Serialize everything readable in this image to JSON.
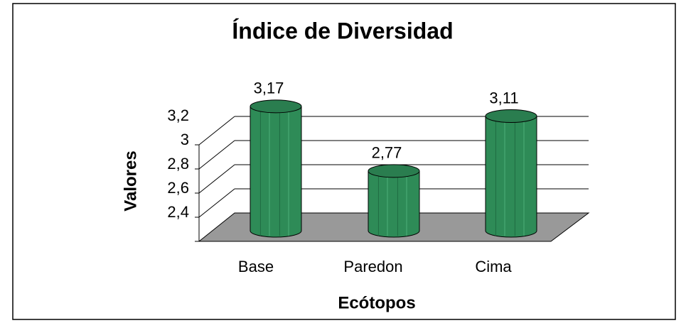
{
  "chart_data": {
    "type": "bar",
    "title": "Índice de Diversidad",
    "x_label": "Ecótopos",
    "y_label": "Valores",
    "categories": [
      "Base",
      "Paredon",
      "Cima"
    ],
    "values": [
      3.17,
      2.77,
      3.11
    ],
    "value_labels": [
      "3,17",
      "2,77",
      "3,11"
    ],
    "color": "#2e8b57",
    "ylim": [
      2.4,
      3.2
    ],
    "yticks": [
      {
        "value": 2.4,
        "label": "2,4"
      },
      {
        "value": 2.6,
        "label": "2,6"
      },
      {
        "value": 2.8,
        "label": "2,8"
      },
      3,
      {
        "value": 3.2,
        "label": "3,2"
      }
    ],
    "grid": true
  }
}
